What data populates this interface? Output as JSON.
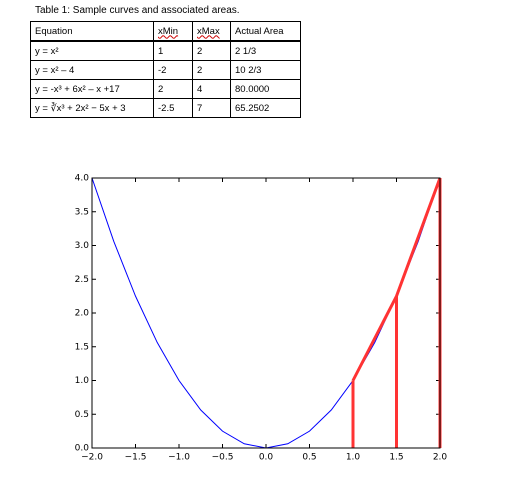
{
  "table": {
    "caption": "Table 1: Sample curves and associated areas.",
    "header": [
      "Equation",
      "xMin",
      "xMax",
      "Actual Area"
    ],
    "rows": [
      [
        "y = x²",
        "1",
        "2",
        "2 1/3"
      ],
      [
        "y = x² – 4",
        "-2",
        "2",
        "10 2/3"
      ],
      [
        "y = -x³ + 6x² – x +17",
        "2",
        "4",
        "80.0000"
      ],
      [
        "y = ∛x³ + 2x² − 5x + 3",
        "-2.5",
        "7",
        "65.2502"
      ]
    ]
  },
  "chart_data": {
    "type": "line",
    "xlim": [
      -2,
      2
    ],
    "ylim": [
      0,
      4
    ],
    "xticks": [
      {
        "value": -2,
        "label": "−2.0"
      },
      {
        "value": -1.5,
        "label": "−1.5"
      },
      {
        "value": -1,
        "label": "−1.0"
      },
      {
        "value": -0.5,
        "label": "−0.5"
      },
      {
        "value": 0,
        "label": "0.0"
      },
      {
        "value": 0.5,
        "label": "0.5"
      },
      {
        "value": 1,
        "label": "1.0"
      },
      {
        "value": 1.5,
        "label": "1.5"
      },
      {
        "value": 2,
        "label": "2.0"
      }
    ],
    "yticks": [
      {
        "value": 0,
        "label": "0.0"
      },
      {
        "value": 0.5,
        "label": "0.5"
      },
      {
        "value": 1,
        "label": "1.0"
      },
      {
        "value": 1.5,
        "label": "1.5"
      },
      {
        "value": 2,
        "label": "2.0"
      },
      {
        "value": 2.5,
        "label": "2.5"
      },
      {
        "value": 3,
        "label": "3.0"
      },
      {
        "value": 3.5,
        "label": "3.5"
      },
      {
        "value": 4,
        "label": "4.0"
      }
    ],
    "series": [
      {
        "color": "#0000ff",
        "x": [
          -2,
          -1.75,
          -1.5,
          -1.25,
          -1,
          -0.75,
          -0.5,
          -0.25,
          0,
          0.25,
          0.5,
          0.75,
          1,
          1.25,
          1.5,
          1.75,
          2
        ],
        "values": [
          4,
          3.0625,
          2.25,
          1.5625,
          1,
          0.5625,
          0.25,
          0.0625,
          0,
          0.0625,
          0.25,
          0.5625,
          1,
          1.5625,
          2.25,
          3.0625,
          4
        ]
      },
      {
        "color": "#ff3333",
        "x": [
          1,
          1.5,
          2
        ],
        "values": [
          1,
          2.25,
          4
        ],
        "verticals": true
      }
    ]
  }
}
